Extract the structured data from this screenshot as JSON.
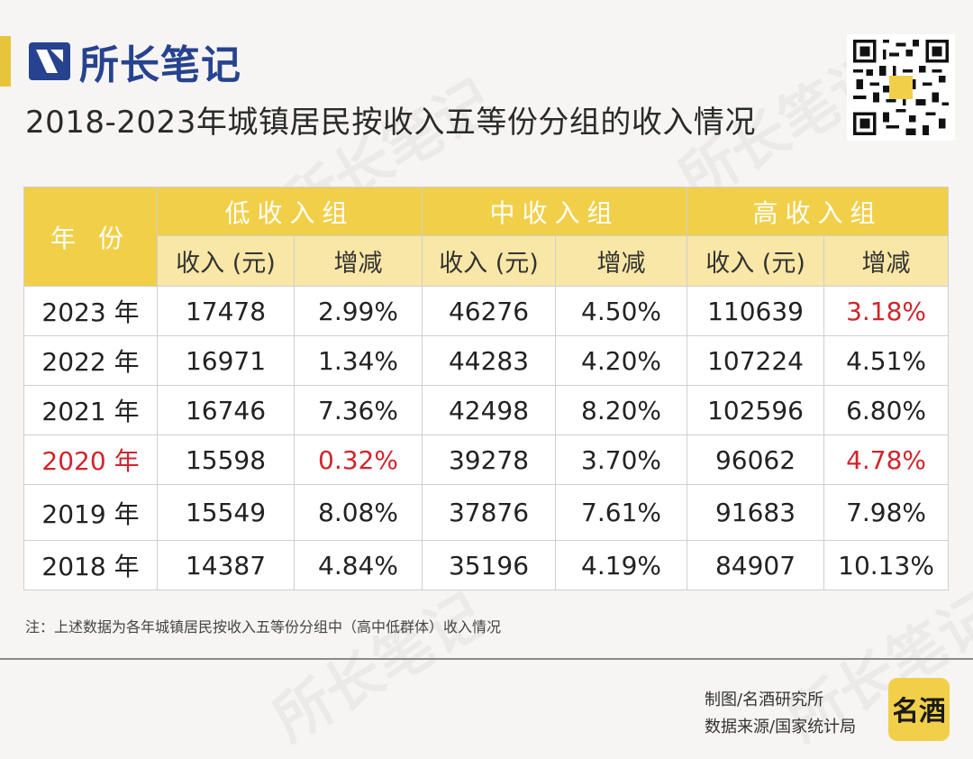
{
  "brand": {
    "name": "所长笔记",
    "watermark": "所长笔记"
  },
  "title": "2018-2023年城镇居民按收入五等份分组的收入情况",
  "table": {
    "year_header": "年 份",
    "groups": [
      "低收入组",
      "中收入组",
      "高收入组"
    ],
    "sub_headers": [
      "收入 (元)",
      "增减",
      "收入 (元)",
      "增减",
      "收入 (元)",
      "增减"
    ],
    "rows": [
      {
        "year": "2023 年",
        "cells": [
          "17478",
          "2.99%",
          "46276",
          "4.50%",
          "110639",
          "3.18%"
        ]
      },
      {
        "year": "2022 年",
        "cells": [
          "16971",
          "1.34%",
          "44283",
          "4.20%",
          "107224",
          "4.51%"
        ]
      },
      {
        "year": "2021 年",
        "cells": [
          "16746",
          "7.36%",
          "42498",
          "8.20%",
          "102596",
          "6.80%"
        ]
      },
      {
        "year": "2020 年",
        "cells": [
          "15598",
          "0.32%",
          "39278",
          "3.70%",
          "96062",
          "4.78%"
        ]
      },
      {
        "year": "2019 年",
        "cells": [
          "15549",
          "8.08%",
          "37876",
          "7.61%",
          "91683",
          "7.98%"
        ]
      },
      {
        "year": "2018 年",
        "cells": [
          "14387",
          "4.84%",
          "35196",
          "4.19%",
          "84907",
          "10.13%"
        ]
      }
    ]
  },
  "note": "注：上述数据为各年城镇居民按收入五等份分组中（高中低群体）收入情况",
  "credits": {
    "chart_by": "制图/名酒研究所",
    "source": "数据来源/国家统计局"
  },
  "badge_text": "名酒",
  "colors": {
    "accent": "#f1cf48",
    "brand": "#27438f",
    "highlight": "#d0252b"
  }
}
